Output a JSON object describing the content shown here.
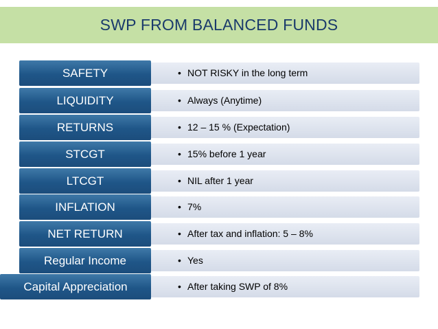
{
  "title": "SWP FROM BALANCED FUNDS",
  "rows": [
    {
      "label": "SAFETY",
      "value": "NOT RISKY in the long term"
    },
    {
      "label": "LIQUIDITY",
      "value": "Always (Anytime)"
    },
    {
      "label": "RETURNS",
      "value": "12 – 15 % (Expectation)"
    },
    {
      "label": "STCGT",
      "value": "15% before 1 year"
    },
    {
      "label": "LTCGT",
      "value": "NIL after 1 year"
    },
    {
      "label": "INFLATION",
      "value": "7%"
    },
    {
      "label": "NET RETURN",
      "value": "After tax and inflation:  5 – 8%"
    },
    {
      "label": "Regular Income",
      "value": "Yes"
    },
    {
      "label": "Capital Appreciation",
      "value": "After taking SWP of 8%"
    }
  ],
  "colors": {
    "label_bg": "#1f5688",
    "title_bg": "#c5e0a5",
    "title_text": "#1a3a6b",
    "value_bg": "#dde3ee"
  }
}
